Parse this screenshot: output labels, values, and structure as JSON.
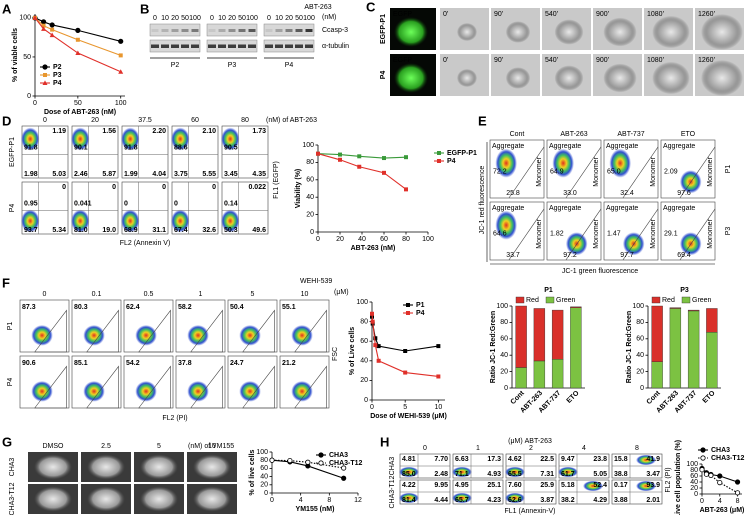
{
  "panel_letters": [
    "A",
    "B",
    "C",
    "D",
    "E",
    "F",
    "G",
    "H"
  ],
  "chart_data": [
    {
      "type": "line",
      "ylabel": "% of viable cells",
      "xlabel": "Dose of ABT-263 (nM)",
      "x": [
        0,
        10,
        20,
        50,
        100
      ],
      "xlim": [
        0,
        105
      ],
      "xticks": [
        0,
        50,
        100
      ],
      "ylim": [
        0,
        105
      ],
      "yticks": [
        0,
        50,
        100
      ],
      "legend": "bottom-left",
      "series": [
        {
          "name": "P2",
          "color": "#000000",
          "marker": "circle",
          "values": [
            100,
            95,
            91,
            84,
            70
          ]
        },
        {
          "name": "P3",
          "color": "#e8962e",
          "marker": "square",
          "values": [
            100,
            90,
            85,
            72,
            52
          ]
        },
        {
          "name": "P4",
          "color": "#e0302a",
          "marker": "triangle",
          "values": [
            100,
            86,
            78,
            55,
            31
          ]
        }
      ]
    },
    {
      "type": "line",
      "ylabel": "Viability (%)",
      "xlabel": "ABT-263 (nM)",
      "x": [
        0,
        20,
        37.5,
        60,
        80
      ],
      "xlim": [
        0,
        100
      ],
      "xticks": [
        0,
        20,
        40,
        60,
        80,
        100
      ],
      "ylim": [
        0,
        100
      ],
      "yticks": [
        0,
        20,
        40,
        60,
        80,
        100
      ],
      "legend": "right",
      "series": [
        {
          "name": "EGFP-P1",
          "color": "#3a9a3a",
          "marker": "square",
          "values": [
            90,
            89,
            87,
            85,
            86
          ]
        },
        {
          "name": "P4",
          "color": "#e0302a",
          "marker": "square",
          "values": [
            90,
            83,
            75,
            68,
            49
          ]
        }
      ]
    },
    {
      "type": "stacked_bar",
      "title": "P1",
      "ylabel": "Ratio JC-1 Red:Green",
      "categories": [
        "Cont",
        "ABT-263",
        "ABT-737",
        "ETO"
      ],
      "ylim": [
        0,
        100
      ],
      "yticks": [
        0,
        20,
        40,
        60,
        80,
        100
      ],
      "legend": "top",
      "series": [
        {
          "name": "Green",
          "color": "#7cc242",
          "values": [
            25,
            33,
            35,
            98
          ]
        },
        {
          "name": "Red",
          "color": "#d9302a",
          "values": [
            75,
            64,
            60,
            1
          ]
        }
      ]
    },
    {
      "type": "stacked_bar",
      "title": "P3",
      "ylabel": "Ratio JC-1 Red:Green",
      "categories": [
        "Cont",
        "ABT-263",
        "ABT-737",
        "ETO"
      ],
      "ylim": [
        0,
        100
      ],
      "yticks": [
        0,
        20,
        40,
        60,
        80,
        100
      ],
      "legend": "top",
      "series": [
        {
          "name": "Green",
          "color": "#7cc242",
          "values": [
            32,
            97,
            94,
            68
          ]
        },
        {
          "name": "Red",
          "color": "#d9302a",
          "values": [
            68,
            1,
            1,
            29
          ]
        }
      ]
    },
    {
      "type": "line",
      "ylabel": "% of Live cells",
      "xlabel": "Dose of WEHI-539 (μM)",
      "x": [
        0,
        0.1,
        0.5,
        1,
        5,
        10
      ],
      "xlim": [
        0,
        11
      ],
      "xticks": [
        0,
        5,
        10
      ],
      "ylim": [
        0,
        100
      ],
      "yticks": [
        0,
        20,
        40,
        60,
        80,
        100
      ],
      "legend": "top-right",
      "series": [
        {
          "name": "P1",
          "color": "#000000",
          "marker": "square",
          "values": [
            85,
            78,
            63,
            55,
            50,
            55
          ]
        },
        {
          "name": "P4",
          "color": "#e0302a",
          "marker": "square",
          "values": [
            88,
            80,
            56,
            40,
            28,
            24
          ]
        }
      ]
    },
    {
      "type": "line",
      "ylabel": "% of live cells",
      "xlabel": "YM155 (nM)",
      "x": [
        0,
        2.5,
        5,
        10
      ],
      "xlim": [
        0,
        12
      ],
      "xticks": [
        0,
        4,
        8,
        12
      ],
      "ylim": [
        0,
        100
      ],
      "yticks": [
        0,
        20,
        40,
        60,
        80,
        100
      ],
      "legend": "top-right",
      "series": [
        {
          "name": "CHA3",
          "color": "#000000",
          "marker": "circle",
          "values": [
            80,
            76,
            66,
            36
          ]
        },
        {
          "name": "CHA3-T12",
          "color": "#000000",
          "marker": "open-circle",
          "dash": "dotted",
          "values": [
            80,
            79,
            75,
            61
          ]
        }
      ]
    },
    {
      "type": "line",
      "ylabel": "Live cell population (%)",
      "xlabel": "ABT-263 (μM)",
      "x": [
        0,
        1,
        2,
        4,
        8
      ],
      "xlim": [
        0,
        9
      ],
      "xticks": [
        0,
        4,
        8
      ],
      "ylim": [
        0,
        100
      ],
      "yticks": [
        0,
        20,
        40,
        60,
        80,
        100
      ],
      "legend": "top",
      "series": [
        {
          "name": "CHA3",
          "color": "#000000",
          "marker": "circle",
          "values": [
            85,
            71,
            65,
            60,
            40
          ]
        },
        {
          "name": "CHA3-T12",
          "color": "#000000",
          "marker": "open-circle",
          "dash": "dotted",
          "values": [
            81,
            66,
            62,
            38,
            4
          ]
        }
      ]
    }
  ],
  "blot": {
    "header": "ABT-263",
    "unit": "(nM)",
    "doses": [
      "0",
      "10",
      "20",
      "50",
      "100"
    ],
    "groups": [
      "P2",
      "P3",
      "P4"
    ],
    "bands": [
      "Ccasp-3",
      "α-tubulin"
    ]
  },
  "timelapse": {
    "rows": [
      "EGFP-P1",
      "P4"
    ],
    "first_tile": "EGFP",
    "times": [
      "0'",
      "90'",
      "540'",
      "900'",
      "1080'",
      "1260'"
    ]
  },
  "flow_d": {
    "title": "(nM) of ABT-263",
    "columns": [
      "0",
      "20",
      "37.5",
      "60",
      "80"
    ],
    "rows": [
      "EGFP-P1",
      "P4"
    ],
    "y_axis": "FL1 (EGFP)",
    "x_axis": "FL2 (Annexin V)",
    "quadrants": [
      [
        [
          "91.8",
          "1.19",
          "1.98",
          "5.03"
        ],
        [
          "90.1",
          "1.56",
          "2.46",
          "5.87"
        ],
        [
          "91.8",
          "2.20",
          "1.99",
          "4.04"
        ],
        [
          "88.6",
          "2.10",
          "3.75",
          "5.55"
        ],
        [
          "90.5",
          "1.73",
          "3.45",
          "4.35"
        ]
      ],
      [
        [
          "0.95",
          "0",
          "93.7",
          "5.34"
        ],
        [
          "0.041",
          "0",
          "81.0",
          "19.0"
        ],
        [
          "0",
          "0",
          "68.9",
          "31.1"
        ],
        [
          "0",
          "0",
          "67.4",
          "32.6"
        ],
        [
          "0.14",
          "0.022",
          "50.3",
          "49.6"
        ]
      ]
    ]
  },
  "flow_e": {
    "columns": [
      "Cont",
      "ABT-263",
      "ABT-737",
      "ETO"
    ],
    "rows": [
      "P1",
      "P3"
    ],
    "gates": [
      "Aggregate",
      "Monomer"
    ],
    "y_axis": "JC-1 red fluorescence",
    "x_axis": "JC-1 green fluorescence",
    "values": [
      [
        [
          "72.2",
          "25.8"
        ],
        [
          "64.9",
          "33.0"
        ],
        [
          "65.0",
          "32.4"
        ],
        [
          "2.09",
          "97.6"
        ]
      ],
      [
        [
          "64.6",
          "33.7"
        ],
        [
          "1.82",
          "97.2"
        ],
        [
          "1.47",
          "97.7"
        ],
        [
          "29.1",
          "69.4"
        ]
      ]
    ]
  },
  "flow_f": {
    "title": "WEHI-539",
    "unit": "(μM)",
    "columns": [
      "0",
      "0.1",
      "0.5",
      "1",
      "5",
      "10"
    ],
    "rows": [
      "P1",
      "P4"
    ],
    "y_axis": "FSC",
    "x_axis": "FL2 (PI)",
    "values": [
      [
        "87.3",
        "80.3",
        "62.4",
        "58.2",
        "50.4",
        "55.1"
      ],
      [
        "90.6",
        "85.1",
        "54.2",
        "37.8",
        "24.7",
        "21.2"
      ]
    ]
  },
  "images_g": {
    "title": "(nM) of YM155",
    "columns": [
      "DMSO",
      "2.5",
      "5",
      "10"
    ],
    "rows": [
      "CHA3",
      "CHA3-T12"
    ]
  },
  "flow_h": {
    "title": "(μM) ABT-263",
    "columns": [
      "0",
      "1",
      "2",
      "4",
      "8"
    ],
    "rows": [
      "CHA3",
      "CHA3-T12"
    ],
    "y_axis": "FL2 (PI)",
    "x_axis": "FL1 (Annexin-V)",
    "quadrants": [
      [
        [
          "4.81",
          "7.70",
          "85.0",
          "2.48"
        ],
        [
          "6.63",
          "17.3",
          "71.1",
          "4.93"
        ],
        [
          "4.62",
          "22.5",
          "65.5",
          "7.31"
        ],
        [
          "9.47",
          "23.8",
          "61.7",
          "5.05"
        ],
        [
          "15.8",
          "41.9",
          "38.8",
          "3.47"
        ]
      ],
      [
        [
          "4.22",
          "9.95",
          "81.4",
          "4.44"
        ],
        [
          "4.95",
          "25.1",
          "65.7",
          "4.23"
        ],
        [
          "7.60",
          "25.9",
          "62.6",
          "3.87"
        ],
        [
          "5.18",
          "52.4",
          "38.2",
          "4.29"
        ],
        [
          "0.17",
          "93.9",
          "3.88",
          "2.01"
        ]
      ]
    ]
  }
}
